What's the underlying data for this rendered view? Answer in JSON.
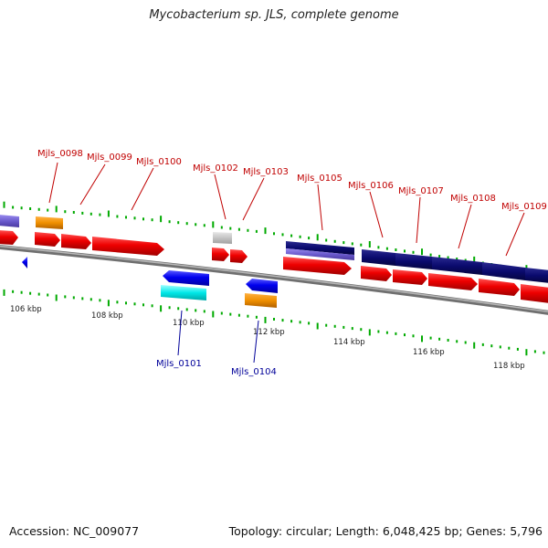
{
  "title": "Mycobacterium sp. JLS, complete genome",
  "footer": {
    "accession": "Accession: NC_009077",
    "summary": "Topology: circular; Length: 6,048,425 bp; Genes: 5,796"
  },
  "scale_labels": [
    "106 kbp",
    "108 kbp",
    "110 kbp",
    "112 kbp",
    "114 kbp",
    "116 kbp",
    "118 kbp"
  ],
  "gene_labels_top": [
    "Mjls_0098",
    "Mjls_0099",
    "Mjls_0100",
    "Mjls_0102",
    "Mjls_0103",
    "Mjls_0105",
    "Mjls_0106",
    "Mjls_0107",
    "Mjls_0108",
    "Mjls_0109"
  ],
  "gene_labels_bottom": [
    "Mjls_0101",
    "Mjls_0104"
  ],
  "colors": {
    "cds_forward": "#ee0000",
    "cds_reverse": "#0000ee",
    "protein_dark": "#0a0a6e",
    "protein_light": "#6a5acd",
    "orange": "#f09000",
    "cyan": "#00e8e8",
    "grey": "#c0c0c0",
    "tick_green": "#00aa00",
    "label_top": "#c00000",
    "label_bottom": "#000099"
  }
}
